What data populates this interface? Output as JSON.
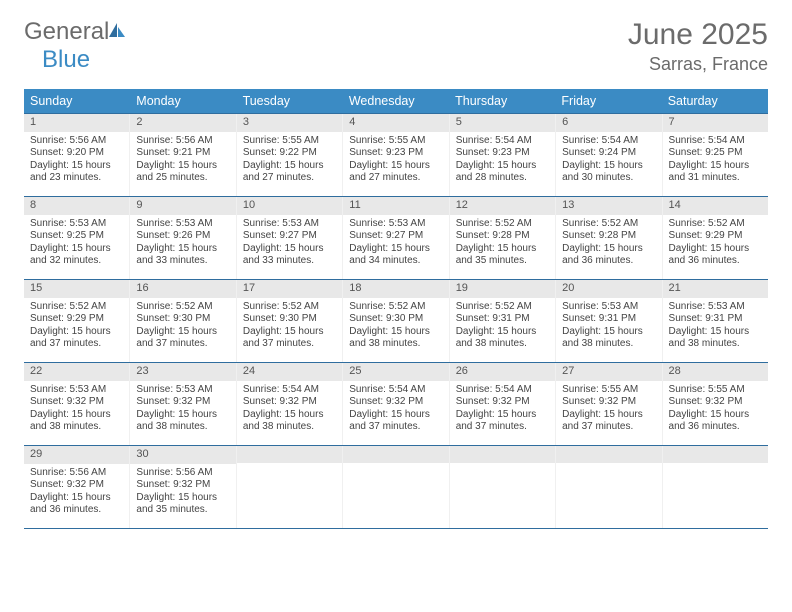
{
  "brand": {
    "general": "General",
    "blue": "Blue"
  },
  "title": "June 2025",
  "location": "Sarras, France",
  "header_bg": "#3b8bc4",
  "border_color": "#2f6d9e",
  "dow": [
    "Sunday",
    "Monday",
    "Tuesday",
    "Wednesday",
    "Thursday",
    "Friday",
    "Saturday"
  ],
  "weeks": [
    [
      {
        "n": "1",
        "sr": "5:56 AM",
        "ss": "9:20 PM",
        "dl": "15 hours and 23 minutes."
      },
      {
        "n": "2",
        "sr": "5:56 AM",
        "ss": "9:21 PM",
        "dl": "15 hours and 25 minutes."
      },
      {
        "n": "3",
        "sr": "5:55 AM",
        "ss": "9:22 PM",
        "dl": "15 hours and 27 minutes."
      },
      {
        "n": "4",
        "sr": "5:55 AM",
        "ss": "9:23 PM",
        "dl": "15 hours and 27 minutes."
      },
      {
        "n": "5",
        "sr": "5:54 AM",
        "ss": "9:23 PM",
        "dl": "15 hours and 28 minutes."
      },
      {
        "n": "6",
        "sr": "5:54 AM",
        "ss": "9:24 PM",
        "dl": "15 hours and 30 minutes."
      },
      {
        "n": "7",
        "sr": "5:54 AM",
        "ss": "9:25 PM",
        "dl": "15 hours and 31 minutes."
      }
    ],
    [
      {
        "n": "8",
        "sr": "5:53 AM",
        "ss": "9:25 PM",
        "dl": "15 hours and 32 minutes."
      },
      {
        "n": "9",
        "sr": "5:53 AM",
        "ss": "9:26 PM",
        "dl": "15 hours and 33 minutes."
      },
      {
        "n": "10",
        "sr": "5:53 AM",
        "ss": "9:27 PM",
        "dl": "15 hours and 33 minutes."
      },
      {
        "n": "11",
        "sr": "5:53 AM",
        "ss": "9:27 PM",
        "dl": "15 hours and 34 minutes."
      },
      {
        "n": "12",
        "sr": "5:52 AM",
        "ss": "9:28 PM",
        "dl": "15 hours and 35 minutes."
      },
      {
        "n": "13",
        "sr": "5:52 AM",
        "ss": "9:28 PM",
        "dl": "15 hours and 36 minutes."
      },
      {
        "n": "14",
        "sr": "5:52 AM",
        "ss": "9:29 PM",
        "dl": "15 hours and 36 minutes."
      }
    ],
    [
      {
        "n": "15",
        "sr": "5:52 AM",
        "ss": "9:29 PM",
        "dl": "15 hours and 37 minutes."
      },
      {
        "n": "16",
        "sr": "5:52 AM",
        "ss": "9:30 PM",
        "dl": "15 hours and 37 minutes."
      },
      {
        "n": "17",
        "sr": "5:52 AM",
        "ss": "9:30 PM",
        "dl": "15 hours and 37 minutes."
      },
      {
        "n": "18",
        "sr": "5:52 AM",
        "ss": "9:30 PM",
        "dl": "15 hours and 38 minutes."
      },
      {
        "n": "19",
        "sr": "5:52 AM",
        "ss": "9:31 PM",
        "dl": "15 hours and 38 minutes."
      },
      {
        "n": "20",
        "sr": "5:53 AM",
        "ss": "9:31 PM",
        "dl": "15 hours and 38 minutes."
      },
      {
        "n": "21",
        "sr": "5:53 AM",
        "ss": "9:31 PM",
        "dl": "15 hours and 38 minutes."
      }
    ],
    [
      {
        "n": "22",
        "sr": "5:53 AM",
        "ss": "9:32 PM",
        "dl": "15 hours and 38 minutes."
      },
      {
        "n": "23",
        "sr": "5:53 AM",
        "ss": "9:32 PM",
        "dl": "15 hours and 38 minutes."
      },
      {
        "n": "24",
        "sr": "5:54 AM",
        "ss": "9:32 PM",
        "dl": "15 hours and 38 minutes."
      },
      {
        "n": "25",
        "sr": "5:54 AM",
        "ss": "9:32 PM",
        "dl": "15 hours and 37 minutes."
      },
      {
        "n": "26",
        "sr": "5:54 AM",
        "ss": "9:32 PM",
        "dl": "15 hours and 37 minutes."
      },
      {
        "n": "27",
        "sr": "5:55 AM",
        "ss": "9:32 PM",
        "dl": "15 hours and 37 minutes."
      },
      {
        "n": "28",
        "sr": "5:55 AM",
        "ss": "9:32 PM",
        "dl": "15 hours and 36 minutes."
      }
    ],
    [
      {
        "n": "29",
        "sr": "5:56 AM",
        "ss": "9:32 PM",
        "dl": "15 hours and 36 minutes."
      },
      {
        "n": "30",
        "sr": "5:56 AM",
        "ss": "9:32 PM",
        "dl": "15 hours and 35 minutes."
      },
      null,
      null,
      null,
      null,
      null
    ]
  ],
  "labels": {
    "sunrise": "Sunrise: ",
    "sunset": "Sunset: ",
    "daylight": "Daylight: "
  }
}
